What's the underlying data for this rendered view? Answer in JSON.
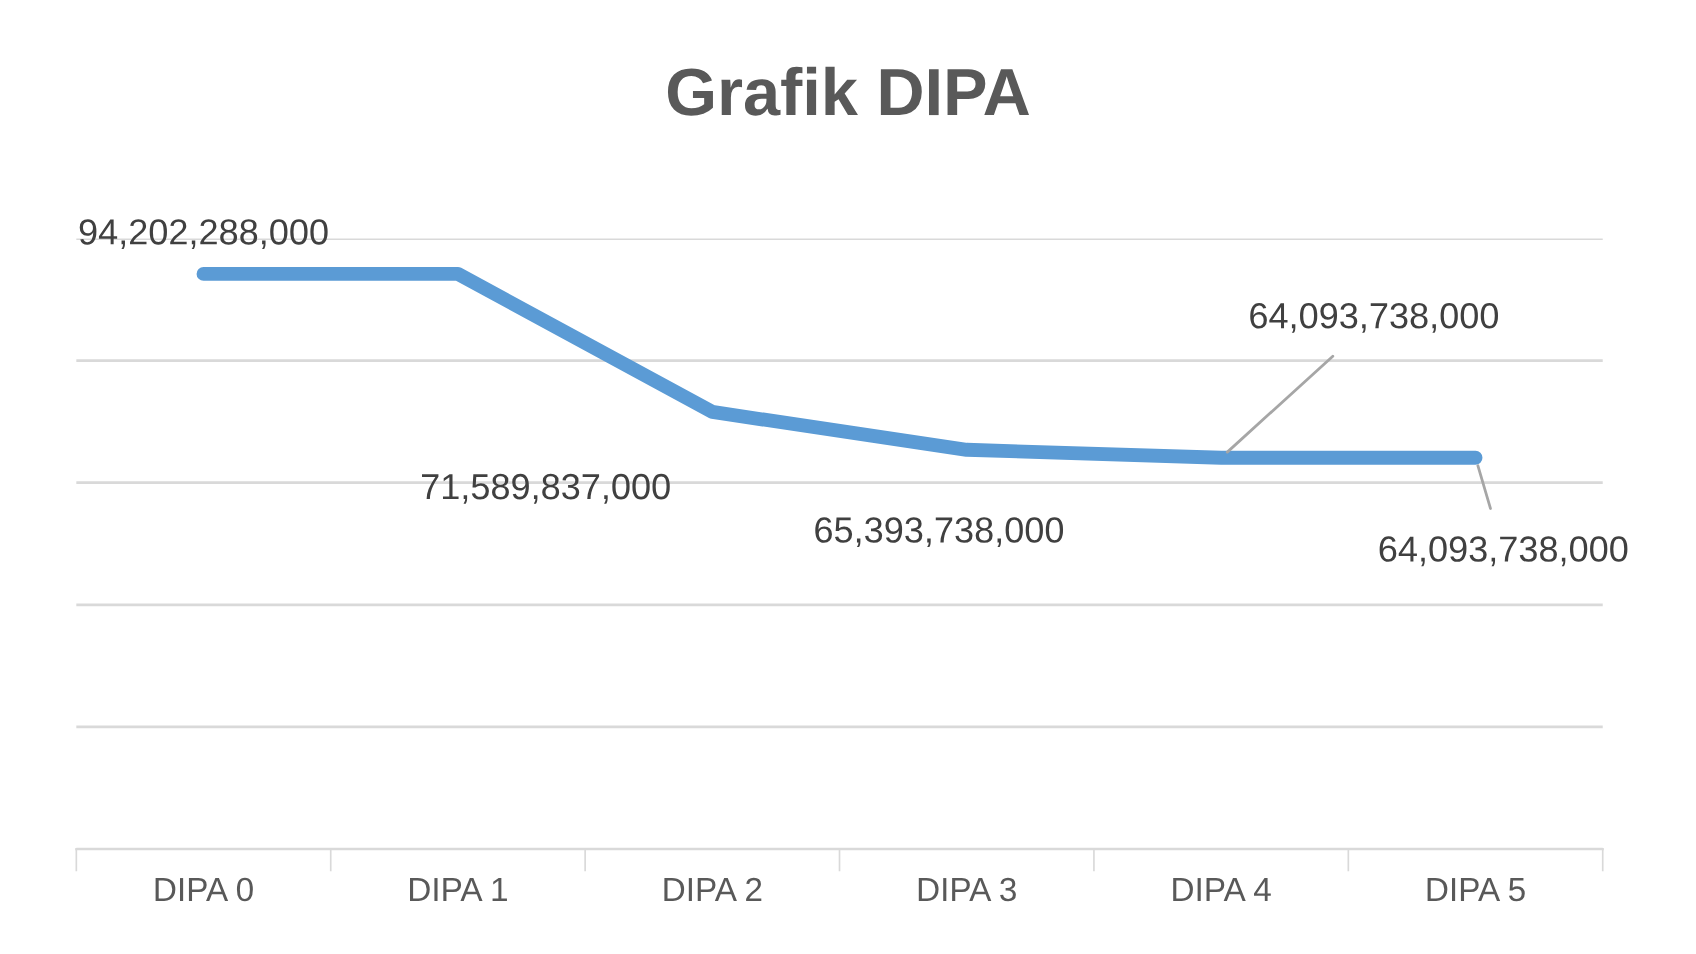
{
  "chart_data": {
    "type": "line",
    "title": "Grafik DIPA",
    "categories": [
      "DIPA 0",
      "DIPA 1",
      "DIPA 2",
      "DIPA 3",
      "DIPA 4",
      "DIPA 5"
    ],
    "series": [
      {
        "color": "#5b9bd5",
        "values": [
          94202288000,
          94202288000,
          71589837000,
          65393738000,
          64093738000,
          64093738000
        ],
        "value_labels": [
          "94,202,288,000",
          null,
          "71,589,837,000",
          "65,393,738,000",
          "64,093,738,000",
          "64,093,738,000"
        ]
      }
    ],
    "ylim": [
      0,
      100000000000
    ],
    "yticks": [
      {
        "value": 0,
        "label": null
      },
      {
        "value": 20000000000,
        "label": null
      },
      {
        "value": 40000000000,
        "label": null
      },
      {
        "value": 60000000000,
        "label": null
      },
      {
        "value": 80000000000,
        "label": null
      },
      {
        "value": 100000000000,
        "label": null
      }
    ],
    "tick_labels": "x",
    "grid": "y",
    "marker": "none",
    "line_style": "solid",
    "legend": false
  }
}
